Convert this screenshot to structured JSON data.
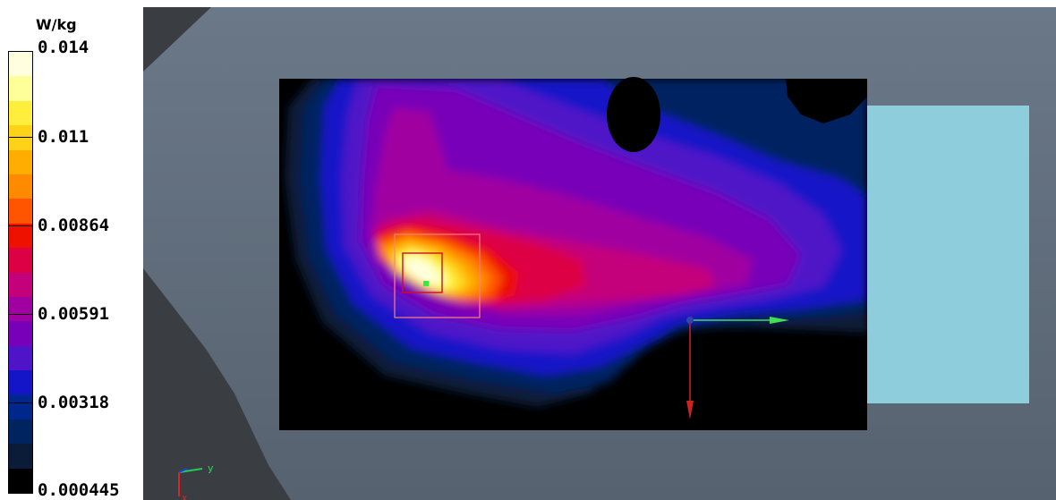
{
  "legend": {
    "unit": "W/kg",
    "ticks": [
      "0.014",
      "0.011",
      "0.00864",
      "0.00591",
      "0.00318",
      "0.000445"
    ],
    "band_colors": [
      "#ffffe0",
      "#ffff9a",
      "#ffef3c",
      "#ffd21a",
      "#ffae00",
      "#ff8a00",
      "#ff5500",
      "#ee1100",
      "#dd0044",
      "#c4007a",
      "#a000a0",
      "#7800b8",
      "#5014c8",
      "#1414c8",
      "#00288c",
      "#002460",
      "#0a1c38",
      "#000000"
    ]
  },
  "axis_triad": {
    "y_label": "y",
    "x_label": "x"
  },
  "colors": {
    "background_frame": "#626f7f",
    "side_block": "#8ecddc",
    "measurement_box": "#ff7070",
    "probe_marker": "#33ee33"
  }
}
